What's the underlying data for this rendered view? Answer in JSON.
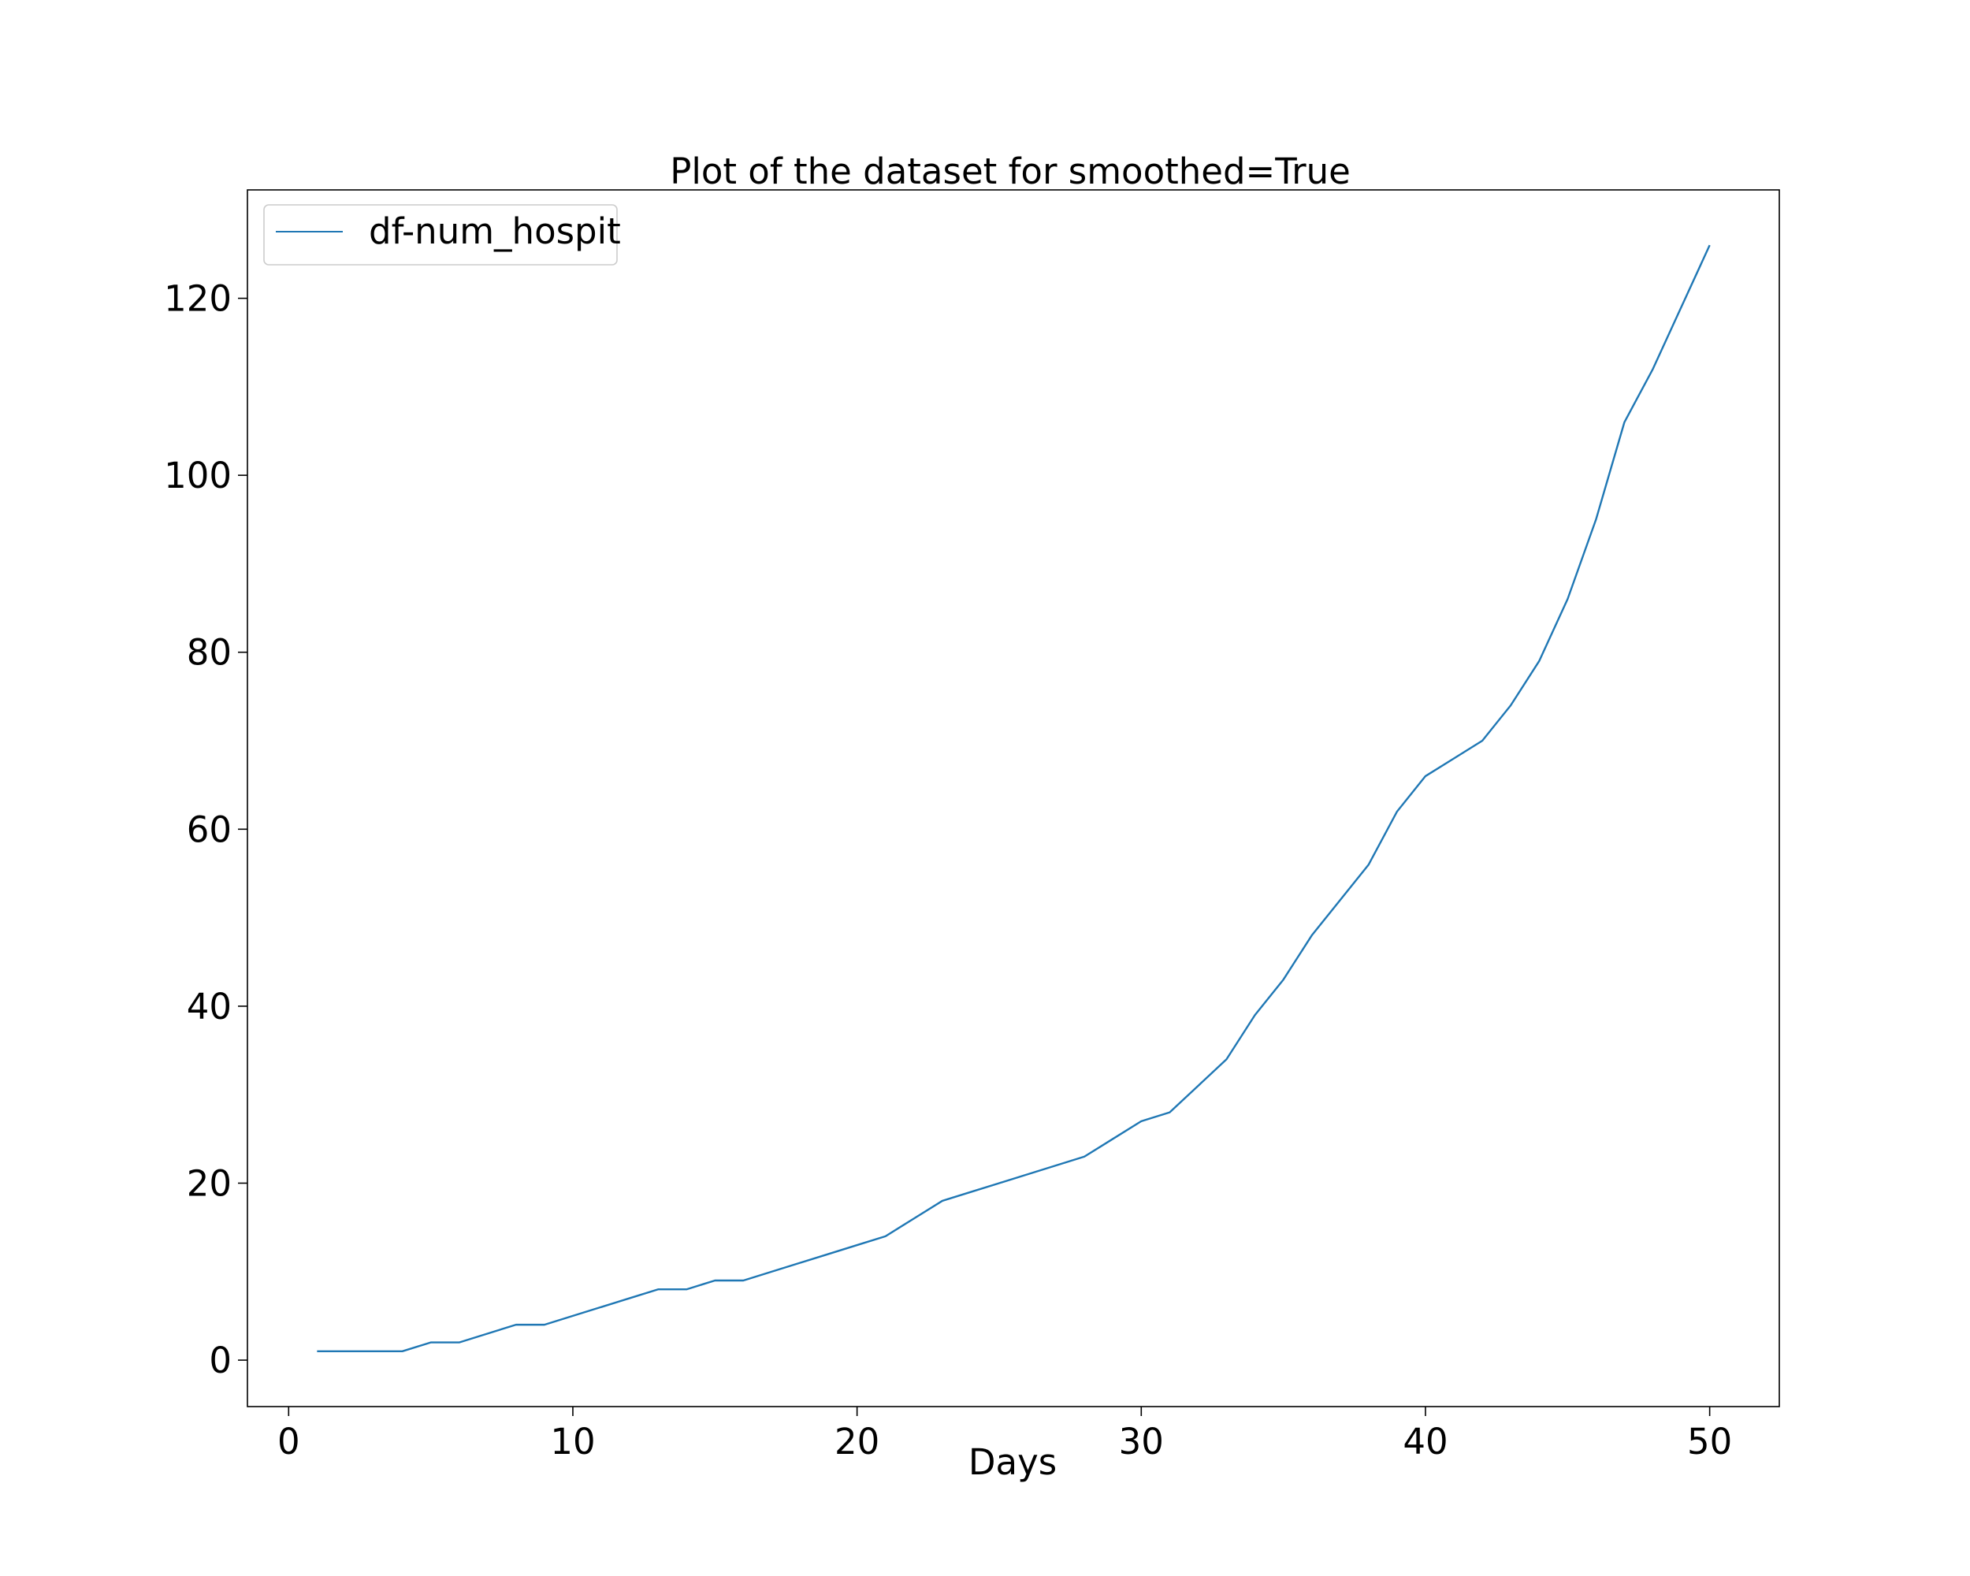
{
  "chart_data": {
    "type": "line",
    "title": "Plot of the dataset for smoothed=True",
    "xlabel": "Days",
    "ylabel": "",
    "xlim": [
      -1.45,
      52.45
    ],
    "ylim": [
      -5.25,
      132.25
    ],
    "x_ticks": [
      0,
      10,
      20,
      30,
      40,
      50
    ],
    "y_ticks": [
      0,
      20,
      40,
      60,
      80,
      100,
      120
    ],
    "grid": false,
    "legend": "top-left",
    "colors": {
      "series": "#1f77b4",
      "axes": "#000000",
      "background": "#ffffff"
    },
    "series": [
      {
        "name": "df-num_hospit",
        "x": [
          1,
          2,
          3,
          4,
          5,
          6,
          7,
          8,
          9,
          10,
          11,
          12,
          13,
          14,
          15,
          16,
          17,
          18,
          19,
          20,
          21,
          22,
          23,
          24,
          25,
          26,
          27,
          28,
          29,
          30,
          31,
          32,
          33,
          34,
          35,
          36,
          37,
          38,
          39,
          40,
          41,
          42,
          43,
          44,
          45,
          46,
          47,
          48,
          49,
          50
        ],
        "y": [
          1,
          1,
          1,
          1,
          2,
          2,
          3,
          4,
          4,
          5,
          6,
          7,
          8,
          8,
          9,
          9,
          10,
          11,
          12,
          13,
          14,
          16,
          18,
          19,
          20,
          21,
          22,
          23,
          25,
          27,
          28,
          31,
          34,
          39,
          43,
          48,
          52,
          56,
          62,
          66,
          68,
          70,
          74,
          79,
          86,
          95,
          106,
          112,
          119,
          126
        ]
      }
    ]
  }
}
